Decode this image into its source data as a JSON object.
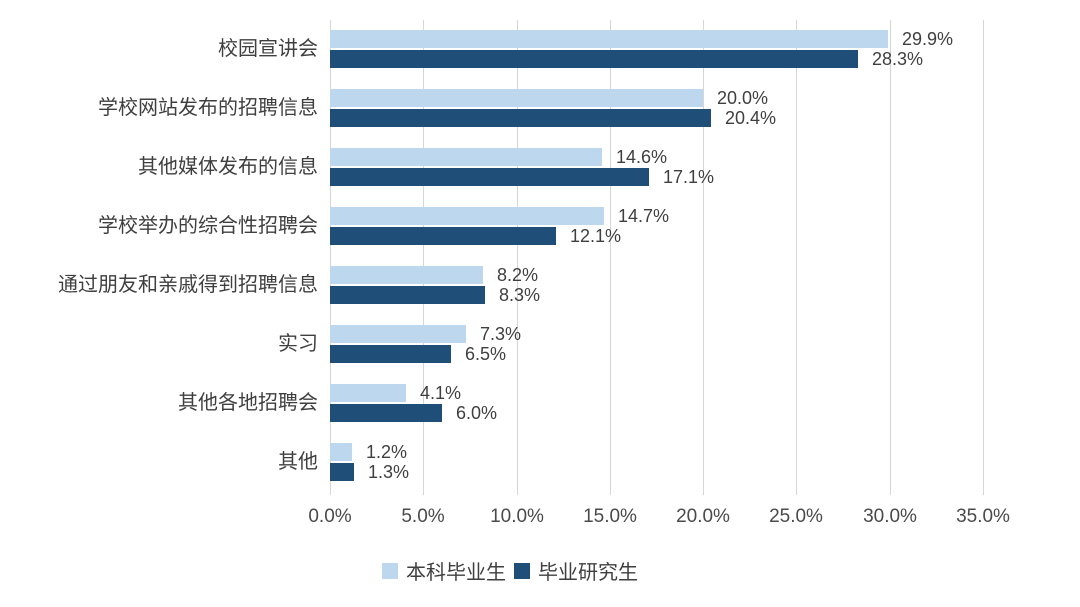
{
  "chart_data": {
    "type": "bar",
    "orientation": "horizontal",
    "title": "",
    "xlabel": "",
    "ylabel": "",
    "categories": [
      "校园宣讲会",
      "学校网站发布的招聘信息",
      "其他媒体发布的信息",
      "学校举办的综合性招聘会",
      "通过朋友和亲戚得到招聘信息",
      "实习",
      "其他各地招聘会",
      "其他"
    ],
    "series": [
      {
        "name": "本科毕业生",
        "color": "#bdd7ee",
        "values": [
          29.9,
          20.0,
          14.6,
          14.7,
          8.2,
          7.3,
          4.1,
          1.2
        ]
      },
      {
        "name": "毕业研究生",
        "color": "#1f4e79",
        "values": [
          28.3,
          20.4,
          17.1,
          12.1,
          8.3,
          6.5,
          6.0,
          1.3
        ]
      }
    ],
    "x_ticks": [
      "0.0%",
      "5.0%",
      "10.0%",
      "15.0%",
      "20.0%",
      "25.0%",
      "30.0%",
      "35.0%"
    ],
    "xlim": [
      0,
      35
    ],
    "value_suffix": "%",
    "data_labels": true,
    "grid": "vertical",
    "legend_position": "bottom"
  },
  "colors": {
    "background": "#ffffff",
    "gridline": "#d6d6d6",
    "text": "#3f3f3f",
    "series_light": "#bdd7ee",
    "series_dark": "#1f4e79"
  }
}
